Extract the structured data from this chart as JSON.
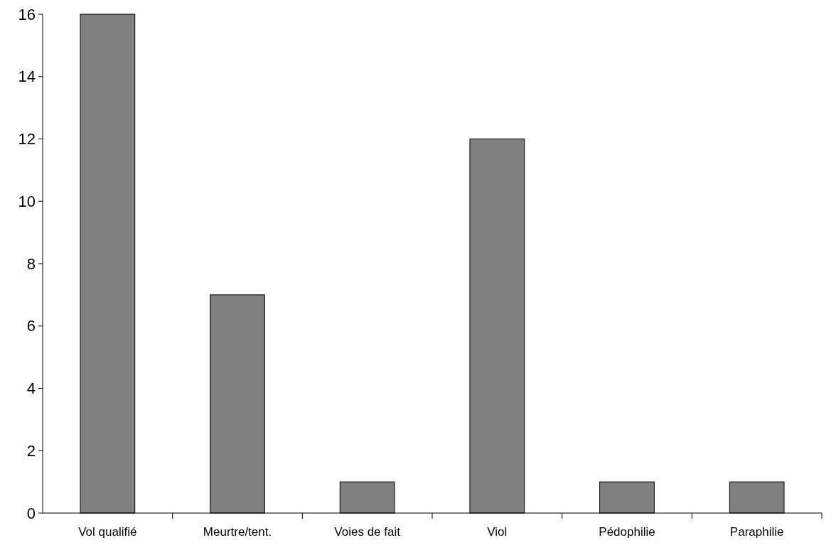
{
  "chart_data": {
    "type": "bar",
    "categories": [
      "Vol qualifié",
      "Meurtre/tent.",
      "Voies de fait",
      "Viol",
      "Pédophilie",
      "Paraphilie"
    ],
    "values": [
      16,
      7,
      1,
      12,
      1,
      1
    ],
    "color": "#808080",
    "ylim": [
      0,
      16
    ],
    "yticks": [
      0,
      2,
      4,
      6,
      8,
      10,
      12,
      14,
      16
    ],
    "grid": false
  }
}
